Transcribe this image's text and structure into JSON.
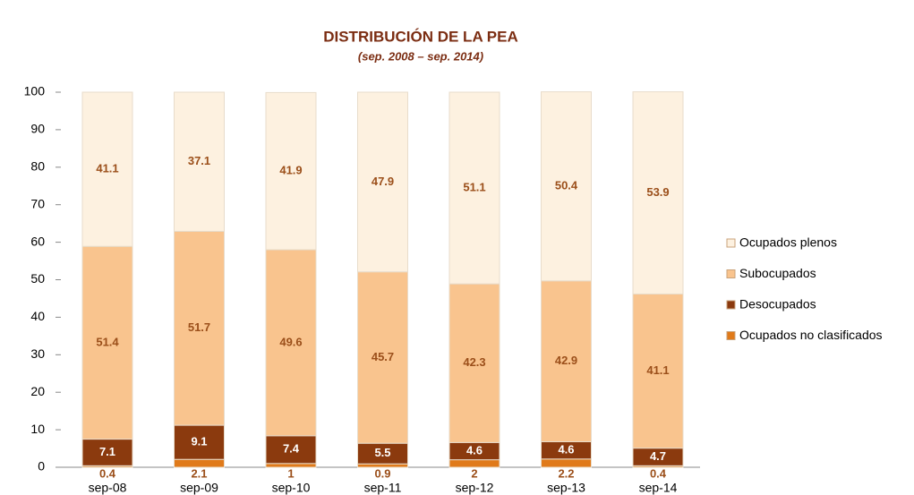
{
  "chart_data": {
    "type": "stacked_bar",
    "title": "DISTRIBUCIÓN DE LA PEA",
    "subtitle": "(sep. 2008 – sep. 2014)",
    "categories": [
      "sep-08",
      "sep-09",
      "sep-10",
      "sep-11",
      "sep-12",
      "sep-13",
      "sep-14"
    ],
    "series": [
      {
        "name": "Ocupados plenos",
        "color": "#fdf1e0",
        "values": [
          41.1,
          37.1,
          41.9,
          47.9,
          51.1,
          50.4,
          53.9
        ]
      },
      {
        "name": "Subocupados",
        "color": "#f9c48e",
        "values": [
          51.4,
          51.7,
          49.6,
          45.7,
          42.3,
          42.9,
          41.1
        ]
      },
      {
        "name": "Desocupados",
        "color": "#8b3a0e",
        "values": [
          7.1,
          9.1,
          7.4,
          5.5,
          4.6,
          4.6,
          4.7
        ]
      },
      {
        "name": "Ocupados no clasificados",
        "color": "#e07a1a",
        "values": [
          0.4,
          2.1,
          1.0,
          0.9,
          2.0,
          2.2,
          0.4
        ]
      }
    ],
    "ylim": [
      0,
      100
    ],
    "yticks": [
      0,
      10,
      20,
      30,
      40,
      50,
      60,
      70,
      80,
      90,
      100
    ],
    "legend": "right"
  }
}
